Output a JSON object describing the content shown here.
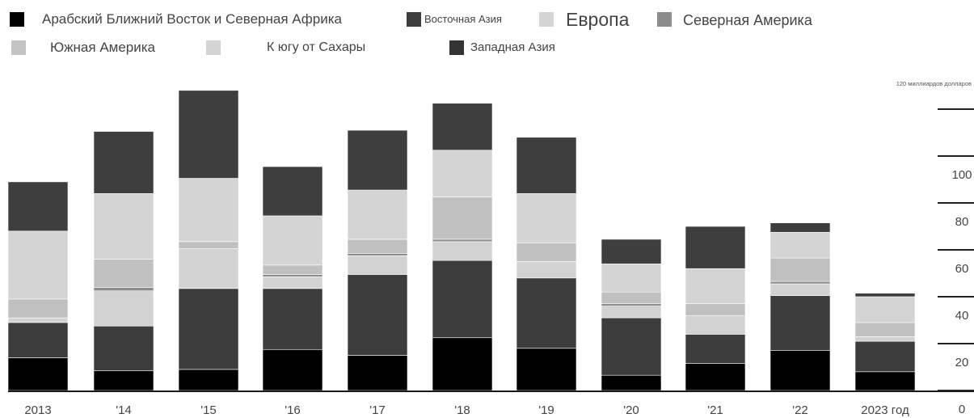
{
  "chart_data": {
    "type": "bar",
    "stacked": true,
    "unit_label": "120 миллиардов долларов",
    "categories": [
      "2013",
      "'14",
      "'15",
      "'16",
      "'17",
      "'18",
      "'19",
      "'20",
      "'21",
      "'22",
      "2023 год"
    ],
    "y_ticks": [
      "0",
      "20",
      "40",
      "60",
      "80",
      "100"
    ],
    "ylim": [
      0,
      120
    ],
    "grid": false,
    "legend_position": "top",
    "series": [
      {
        "name": "Арабский Ближний Восток и Северная Африка",
        "color": "#000000",
        "values": [
          14,
          8.5,
          9,
          17.5,
          15,
          22.5,
          18,
          6.5,
          11.5,
          17,
          8
        ]
      },
      {
        "name": "Восточная Азия",
        "color": "#3c3c3c",
        "values": [
          15,
          19,
          34.5,
          26,
          34.5,
          33,
          30,
          24.5,
          12.5,
          23.5,
          13
        ]
      },
      {
        "name": "Европа",
        "color": "#d2d2d2",
        "values": [
          2,
          15,
          17,
          5,
          8,
          8,
          7,
          5,
          8,
          5,
          2
        ]
      },
      {
        "name": "Северная Америка",
        "color": "#8c8c8c",
        "values": [
          0,
          1.5,
          0,
          1,
          1,
          1,
          0,
          1,
          0,
          1,
          0
        ]
      },
      {
        "name": "Южная Америка",
        "color": "#c0c0c0",
        "values": [
          8,
          12,
          3,
          4,
          6,
          18,
          8,
          5,
          5,
          10,
          6
        ]
      },
      {
        "name": "К югу от Сахары",
        "color": "#d4d4d4",
        "values": [
          29,
          28,
          27,
          21,
          21,
          20,
          21,
          12,
          15,
          11,
          11
        ]
      },
      {
        "name": "Западная Азия",
        "color": "#3e3e3e",
        "values": [
          21,
          26.5,
          37.5,
          21,
          25.5,
          20,
          24,
          10.5,
          18,
          4,
          1.5
        ]
      }
    ]
  }
}
